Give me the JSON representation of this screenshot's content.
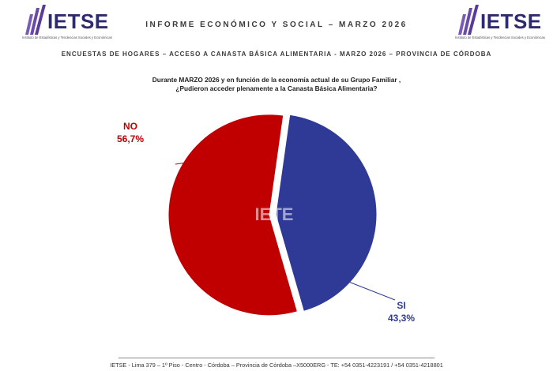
{
  "header": {
    "logo_text": "IETSE",
    "logo_subtext": "Instituto de Estadísticas y Tendencias Sociales y Económicas",
    "report_title": "INFORME ECONÓMICO Y SOCIAL – MARZO 2026",
    "survey_title": "ENCUESTAS DE HOGARES – ACCESO A CANASTA BÁSICA ALIMENTARIA - MARZO 2026 – PROVINCIA DE CÓRDOBA"
  },
  "question": {
    "line1": "Durante MARZO 2026 y en función de la economía actual de su Grupo Familiar ,",
    "line2": "¿Pudieron acceder plenamente a la Canasta Básica Alimentaria?"
  },
  "chart_data": {
    "type": "pie",
    "title": "",
    "watermark": "IETE",
    "slices": [
      {
        "label": "NO",
        "value": 56.7,
        "display": "56,7%",
        "color": "#c00000"
      },
      {
        "label": "SI",
        "value": 43.3,
        "display": "43,3%",
        "color": "#2e3a95"
      }
    ]
  },
  "footer": {
    "text": "IETSE - Lima 379 – 1º Piso - Centro - Córdoba – Provincia de Córdoba –X5000ERG - TE: +54 0351-4223191 / +54 0351-4218801"
  },
  "colors": {
    "brand": "#2e2a6e",
    "no": "#c00000",
    "si": "#2e3a95"
  }
}
